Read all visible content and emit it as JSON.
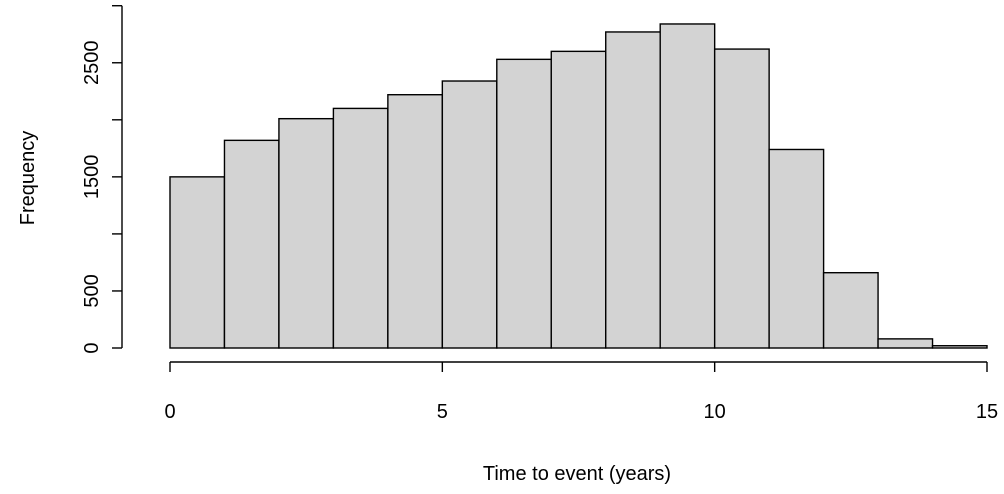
{
  "chart_data": {
    "type": "histogram",
    "title": "",
    "xlabel": "Time to event (years)",
    "ylabel": "Frequency",
    "bin_edges": [
      0,
      1,
      2,
      3,
      4,
      5,
      6,
      7,
      8,
      9,
      10,
      11,
      12,
      13,
      14,
      15
    ],
    "values": [
      1500,
      1820,
      2010,
      2100,
      2220,
      2340,
      2530,
      2600,
      2770,
      2840,
      2620,
      1740,
      660,
      80,
      20
    ],
    "xlim": [
      0,
      15
    ],
    "ylim": [
      0,
      2980
    ],
    "x_ticks": [
      0,
      5,
      10,
      15
    ],
    "x_tick_labels": [
      "0",
      "5",
      "10",
      "15"
    ],
    "y_ticks": [
      0,
      500,
      1000,
      1500,
      2000,
      2500,
      3000
    ],
    "y_tick_labels": [
      "0",
      "500",
      "",
      "1500",
      "",
      "2500",
      ""
    ],
    "bar_color": "#d3d3d3",
    "edge_color": "#000000",
    "grid": false,
    "legend": "none"
  }
}
